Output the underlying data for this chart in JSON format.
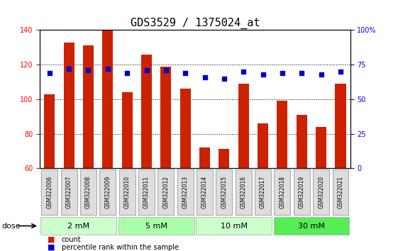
{
  "title": "GDS3529 / 1375024_at",
  "categories": [
    "GSM322006",
    "GSM322007",
    "GSM322008",
    "GSM322009",
    "GSM322010",
    "GSM322011",
    "GSM322012",
    "GSM322013",
    "GSM322014",
    "GSM322015",
    "GSM322016",
    "GSM322017",
    "GSM322018",
    "GSM322019",
    "GSM322020",
    "GSM322021"
  ],
  "bar_values": [
    103,
    133,
    131,
    140,
    104,
    126,
    119,
    106,
    72,
    71,
    109,
    86,
    99,
    91,
    84,
    109
  ],
  "dot_values": [
    69,
    72,
    71,
    72,
    69,
    71,
    71,
    69,
    66,
    65,
    70,
    68,
    69,
    69,
    68,
    70
  ],
  "bar_color": "#cc2200",
  "dot_color": "#0000cc",
  "ylim": [
    60,
    140
  ],
  "ylabel_left": "",
  "ylabel_right": "",
  "yticks_left": [
    60,
    80,
    100,
    120,
    140
  ],
  "yticks_right": [
    0,
    25,
    50,
    75,
    100
  ],
  "yticks_right_vals": [
    60,
    80,
    100,
    120,
    140
  ],
  "dose_groups": [
    {
      "label": "2 mM",
      "start": 0,
      "end": 4,
      "color": "#ccffcc"
    },
    {
      "label": "5 mM",
      "start": 4,
      "end": 8,
      "color": "#aaffaa"
    },
    {
      "label": "10 mM",
      "start": 8,
      "end": 12,
      "color": "#ccffcc"
    },
    {
      "label": "30 mM",
      "start": 12,
      "end": 16,
      "color": "#44ee44"
    }
  ],
  "legend_count_label": "count",
  "legend_pct_label": "percentile rank within the sample",
  "dose_label": "dose",
  "bg_color": "#ffffff",
  "tick_area_color": "#dddddd",
  "grid_color": "#000000",
  "title_fontsize": 11,
  "axis_fontsize": 9,
  "tick_fontsize": 7
}
